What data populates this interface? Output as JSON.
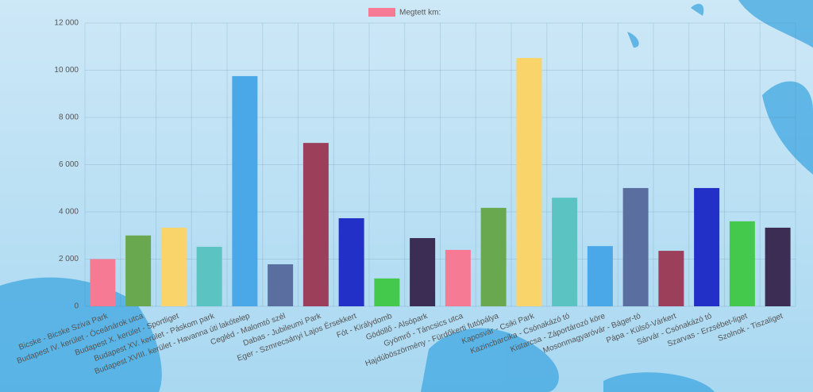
{
  "chart_data": {
    "type": "bar",
    "categories": [
      "Bicske - Bicske Sziva Park",
      "Budapest IV. kerület - Óceánárok utca",
      "Budapest X. kerület - Sportliget",
      "Budapest XV. kerület - Páskom park",
      "Budapest XVIII. kerület - Havanna úti lakótelep",
      "Cegléd - Malomtó szél",
      "Dabas - Jubileumi Park",
      "Eger - Szmrecsányi Lajos Érsekkert",
      "Fót - Királydomb",
      "Gödöllő - Alsópark",
      "Gyömrő - Táncsics utca",
      "Hajdúböszörmény - Fürdőkerti futópálya",
      "Kaposvár - Csiki Park",
      "Kazincbarcika - Csónakázó tó",
      "Kistarcsa - Záportározó köre",
      "Mosonmagyaróvár - Báger-tó",
      "Pápa - Külső-Várkert",
      "Sárvár - Csónakázó tó",
      "Szarvas - Erzsébet-liget",
      "Szolnok - Tiszaliget"
    ],
    "series": [
      {
        "name": "Megtett km:",
        "colors": [
          "#f67a93",
          "#6aa84f",
          "#f9d46b",
          "#5bc3c2",
          "#4aa8e8",
          "#5a6fa0",
          "#9b3f5a",
          "#2230c8",
          "#45c94c",
          "#3c2d55",
          "#f67a93",
          "#6aa84f",
          "#f9d46b",
          "#5bc3c2",
          "#4aa8e8",
          "#5a6fa0",
          "#9b3f5a",
          "#2230c8",
          "#45c94c",
          "#3c2d55"
        ],
        "values": [
          2000,
          3000,
          3330,
          2520,
          9750,
          1780,
          6920,
          3730,
          1180,
          2890,
          2390,
          4170,
          10520,
          4600,
          2550,
          5010,
          2350,
          5010,
          3600,
          3330
        ]
      }
    ],
    "ylim": [
      0,
      12000
    ],
    "yticks": [
      0,
      {
        "value": 2000,
        "label": "2 000"
      },
      {
        "value": 4000,
        "label": "4 000"
      },
      {
        "value": 6000,
        "label": "6 000"
      },
      {
        "value": 8000,
        "label": "8 000"
      },
      {
        "value": 10000,
        "label": "10 000"
      },
      {
        "value": 12000,
        "label": "12 000"
      }
    ],
    "grid": true,
    "legend": "top"
  }
}
